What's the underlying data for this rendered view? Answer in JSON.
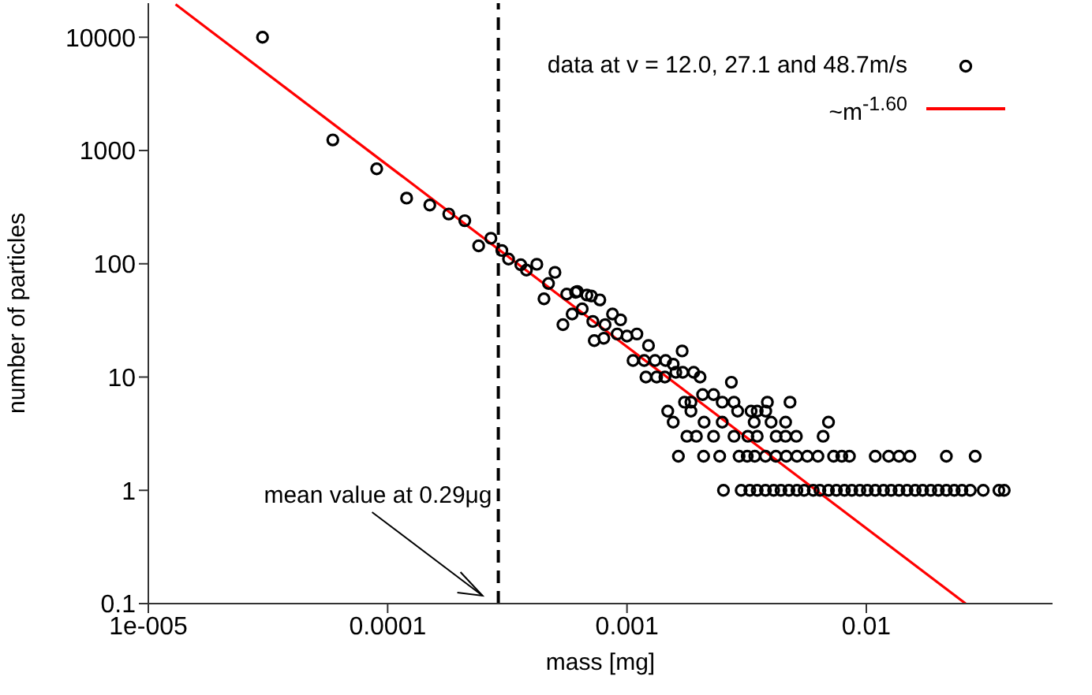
{
  "chart_data": {
    "type": "scatter",
    "xlabel": "mass [mg]",
    "ylabel": "number of particles",
    "log": "xy",
    "legend": "top right",
    "marker": "circle",
    "xlim": [
      1e-05,
      0.06
    ],
    "xticks": [
      {
        "value": 1e-05,
        "label": "1e-005"
      },
      0.0001,
      0.001,
      0.01
    ],
    "ylim": [
      0.1,
      20000
    ],
    "yticks": [
      0.1,
      1,
      10,
      100,
      1000,
      10000
    ],
    "series": [
      {
        "name": "data at v = 12.0, 27.1 and 48.7m/s",
        "color": "#000000",
        "x": [
          3e-05,
          5.9e-05,
          9e-05,
          0.00012,
          0.00015,
          0.00018,
          0.00021,
          0.00024,
          0.00027,
          0.0003,
          0.00032,
          0.00036,
          0.00038,
          0.00042,
          0.00045,
          0.00047,
          0.0005,
          0.00054,
          0.00056,
          0.00059,
          0.00062,
          0.00065,
          0.00068,
          0.00072,
          0.00073,
          0.00061,
          0.00071,
          0.00077,
          0.00087,
          0.00094,
          0.00081,
          0.0008,
          0.00091,
          0.001,
          0.0011,
          0.00123,
          0.00106,
          0.00118,
          0.00131,
          0.00145,
          0.00156,
          0.0017,
          0.0012,
          0.00133,
          0.00144,
          0.0016,
          0.00171,
          0.0019,
          0.00202,
          0.00273,
          0.00207,
          0.0023,
          0.00174,
          0.00185,
          0.0025,
          0.0028,
          0.00148,
          0.00185,
          0.0029,
          0.0033,
          0.0035,
          0.0038,
          0.00386,
          0.0048,
          0.00156,
          0.0021,
          0.0025,
          0.0034,
          0.004,
          0.0046,
          0.00695,
          0.00178,
          0.00195,
          0.0023,
          0.0028,
          0.0032,
          0.0035,
          0.0042,
          0.0046,
          0.0051,
          0.0066,
          0.00164,
          0.00209,
          0.00244,
          0.00294,
          0.00318,
          0.00342,
          0.00379,
          0.00419,
          0.00463,
          0.00513,
          0.00567,
          0.00628,
          0.0073,
          0.0079,
          0.0085,
          0.0109,
          0.0124,
          0.0137,
          0.0152,
          0.0216,
          0.0285,
          0.00253,
          0.003,
          0.00326,
          0.0035,
          0.00379,
          0.0041,
          0.0044,
          0.00475,
          0.00513,
          0.0055,
          0.006,
          0.0064,
          0.00695,
          0.0075,
          0.0081,
          0.0087,
          0.0094,
          0.0101,
          0.0109,
          0.0118,
          0.0127,
          0.0137,
          0.0148,
          0.016,
          0.0172,
          0.0186,
          0.02,
          0.0216,
          0.0233,
          0.0251,
          0.0272,
          0.0308,
          0.0358,
          0.0377
        ],
        "values": [
          10000,
          1240,
          690,
          380,
          330,
          275,
          240,
          144,
          168,
          131,
          110,
          98,
          88,
          99,
          49,
          67,
          84,
          29,
          54,
          36,
          57,
          40,
          53,
          31,
          21,
          56,
          52,
          48,
          36,
          32,
          29,
          22,
          24,
          23,
          24,
          19,
          14,
          14,
          14,
          14,
          13,
          17,
          10,
          10,
          10,
          11,
          11,
          11,
          10,
          9,
          7,
          7,
          6,
          6,
          6,
          6,
          5,
          5,
          5,
          5,
          5,
          5,
          6,
          6,
          4,
          4,
          4,
          4,
          4,
          4,
          4,
          3,
          3,
          3,
          3,
          3,
          3,
          3,
          3,
          3,
          3,
          2,
          2,
          2,
          2,
          2,
          2,
          2,
          2,
          2,
          2,
          2,
          2,
          2,
          2,
          2,
          2,
          2,
          2,
          2,
          2,
          2,
          1,
          1,
          1,
          1,
          1,
          1,
          1,
          1,
          1,
          1,
          1,
          1,
          1,
          1,
          1,
          1,
          1,
          1,
          1,
          1,
          1,
          1,
          1,
          1,
          1,
          1,
          1,
          1,
          1,
          1,
          1,
          1,
          1,
          1
        ]
      },
      {
        "name": "~m$^{-1.60}$",
        "type": "line",
        "color": "#ff0000",
        "marker": "none",
        "line_style": "solid",
        "x": [
          1.3e-05,
          0.026
        ],
        "values": [
          19500,
          0.1
        ]
      }
    ],
    "ref_lines": [
      {
        "axis": "x",
        "value": 0.00029,
        "label": "mean value at 0.29μg",
        "color": "#000000",
        "line_style": "dashed"
      }
    ]
  }
}
